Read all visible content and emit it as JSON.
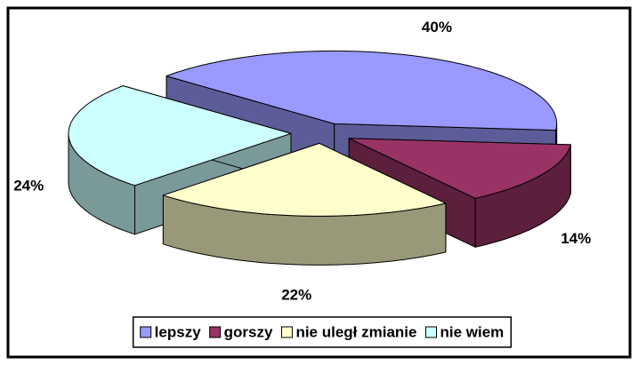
{
  "chart_data": {
    "type": "pie",
    "categories": [
      "lepszy",
      "gorszy",
      "nie uległ zmianie",
      "nie wiem"
    ],
    "values": [
      40,
      14,
      22,
      24
    ],
    "value_labels": [
      "40%",
      "14%",
      "22%",
      "24%"
    ],
    "colors": [
      "#9999ff",
      "#993366",
      "#ffffcc",
      "#ccffff"
    ],
    "legend": "bottom"
  }
}
